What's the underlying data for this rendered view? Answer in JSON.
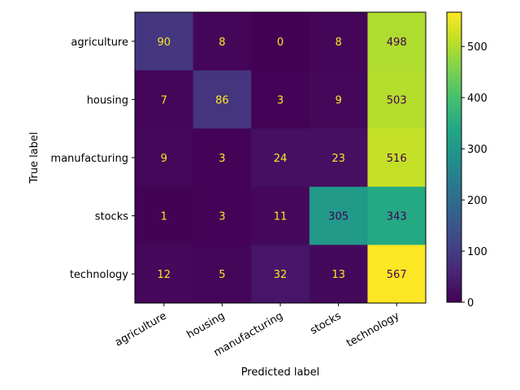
{
  "chart_data": {
    "type": "heatmap",
    "title": "",
    "xlabel": "Predicted label",
    "ylabel": "True label",
    "row_labels": [
      "agriculture",
      "housing",
      "manufacturing",
      "stocks",
      "technology"
    ],
    "col_labels": [
      "agriculture",
      "housing",
      "manufacturing",
      "stocks",
      "technology"
    ],
    "values": [
      [
        90,
        8,
        0,
        8,
        498
      ],
      [
        7,
        86,
        3,
        9,
        503
      ],
      [
        9,
        3,
        24,
        23,
        516
      ],
      [
        1,
        3,
        11,
        305,
        343
      ],
      [
        12,
        5,
        32,
        13,
        567
      ]
    ],
    "colormap": "viridis",
    "vmin": 0,
    "vmax": 567,
    "colorbar": {
      "ticks": [
        0,
        100,
        200,
        300,
        400,
        500
      ],
      "tick_labels": [
        "0",
        "100",
        "200",
        "300",
        "400",
        "500"
      ]
    },
    "text_colors": {
      "light": "#fde725",
      "dark": "#440154"
    }
  }
}
